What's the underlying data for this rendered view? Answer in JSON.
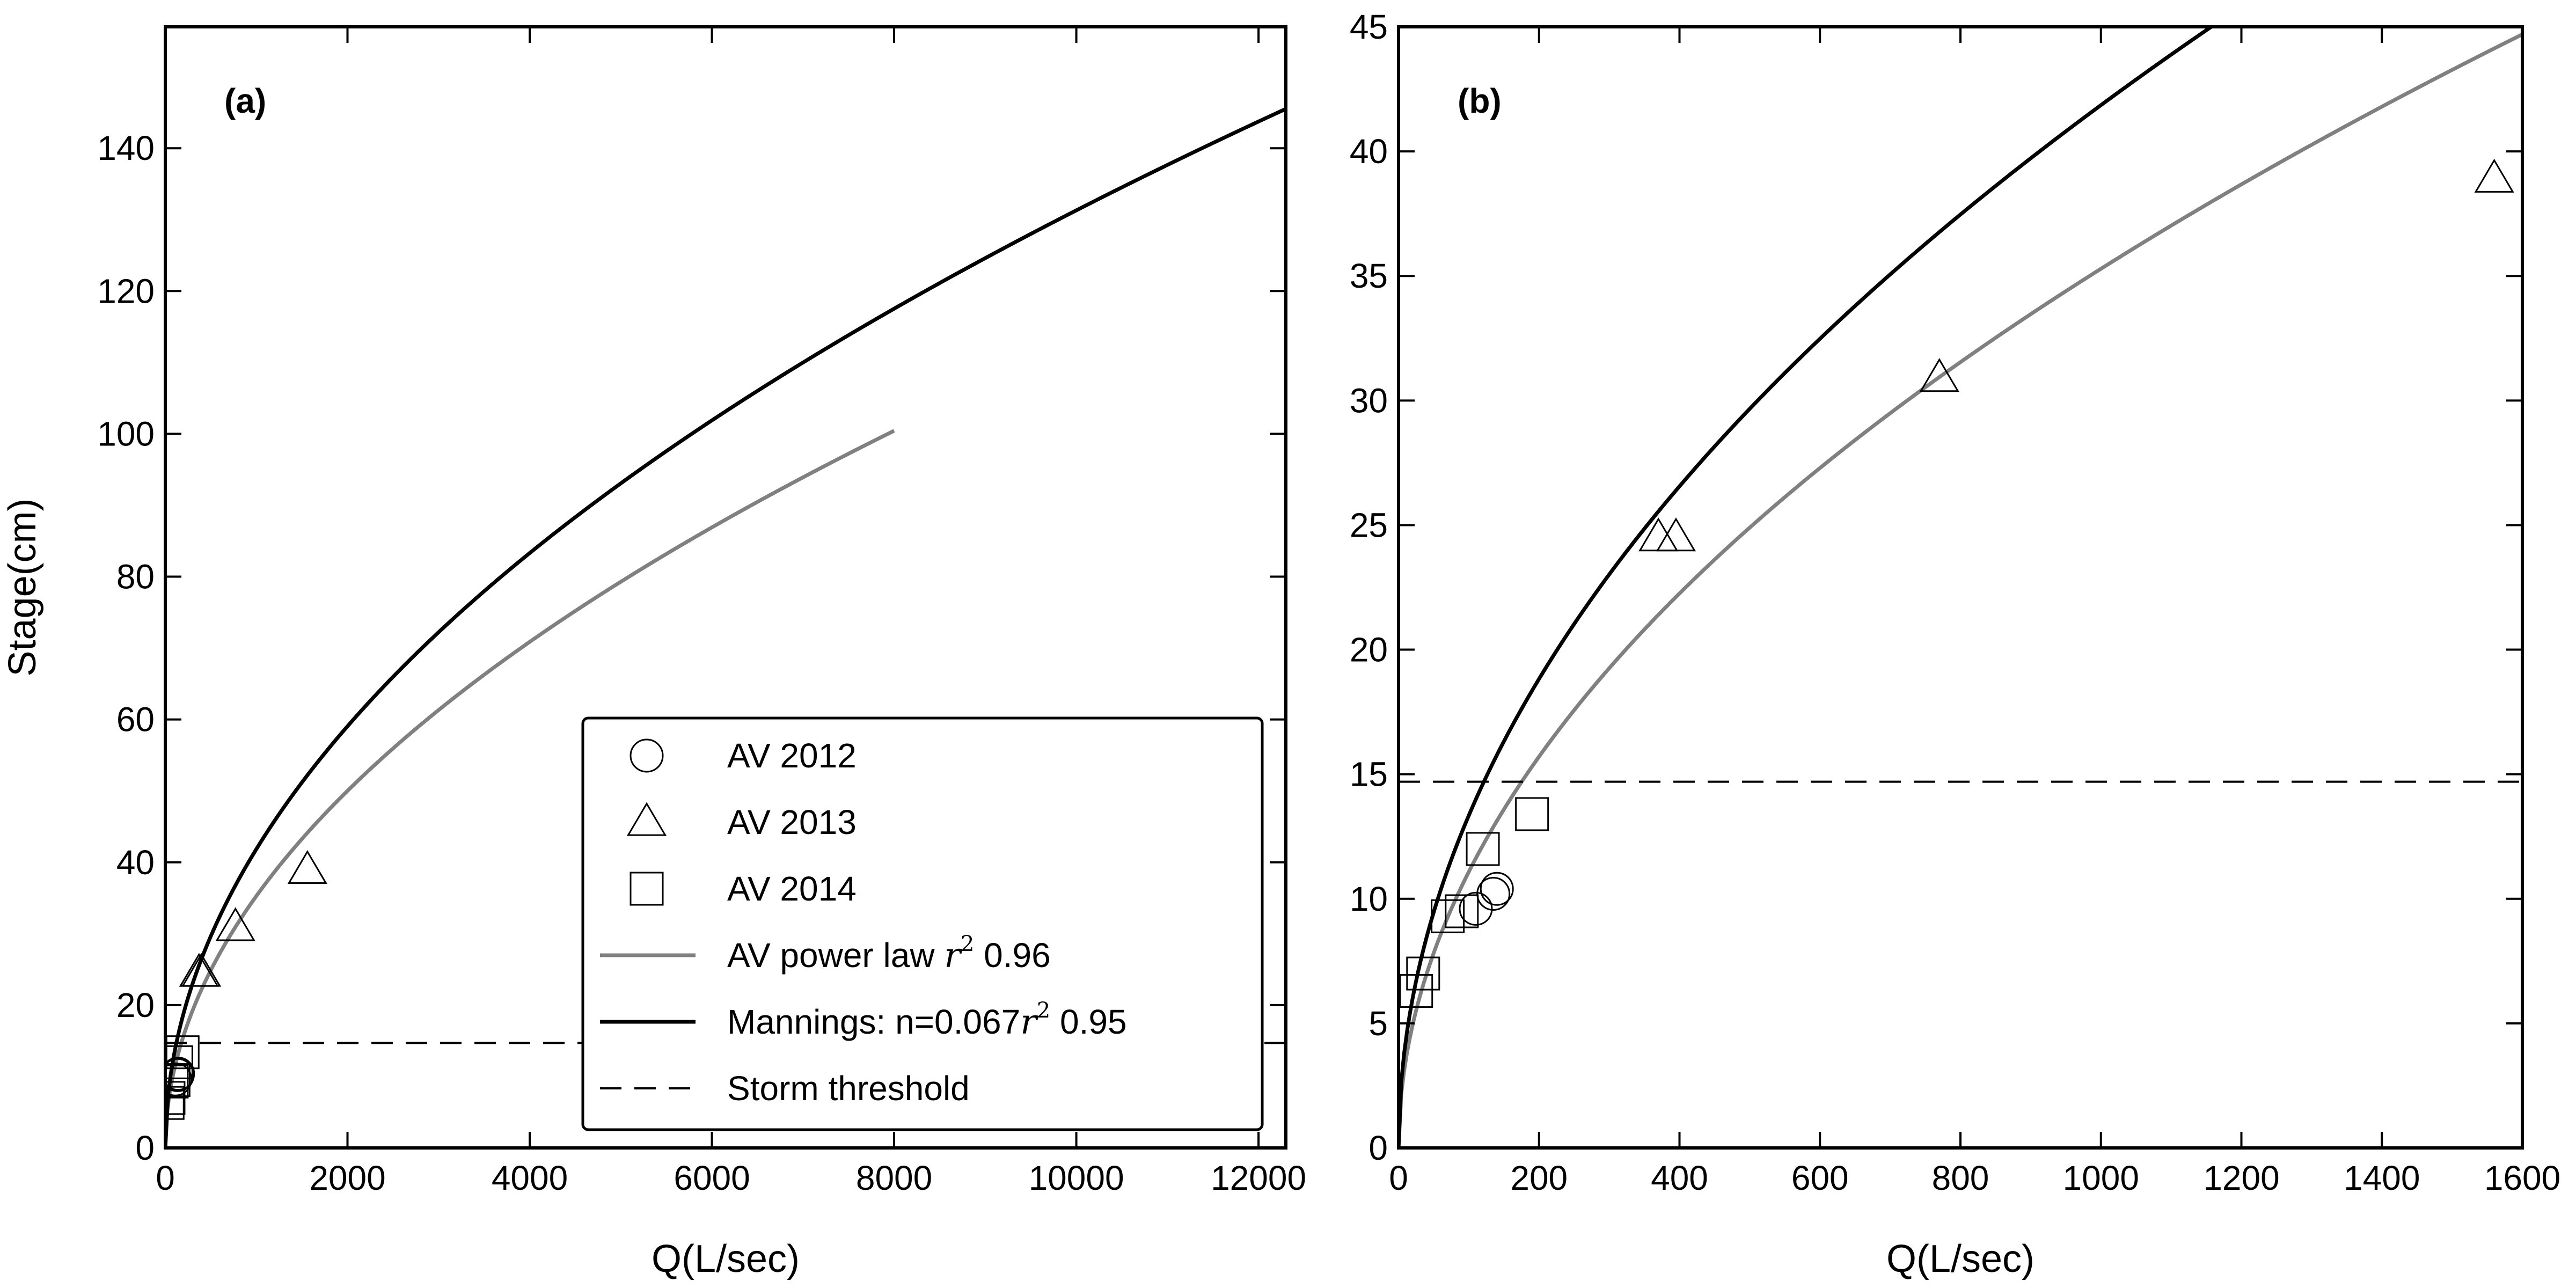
{
  "chart_data": [
    {
      "type": "scatter",
      "panel_label": "(a)",
      "xlabel": "Q(L/sec)",
      "ylabel": "Stage(cm)",
      "xlim": [
        0,
        12300
      ],
      "ylim": [
        0,
        157
      ],
      "xticks": [
        0,
        2000,
        4000,
        6000,
        8000,
        10000,
        12000
      ],
      "yticks": [
        0,
        20,
        40,
        60,
        80,
        100,
        120,
        140
      ],
      "grid": false,
      "legend_position": "lower-right",
      "series": [
        {
          "name": "AV 2012",
          "kind": "marker",
          "marker": "circle",
          "points": [
            [
              110,
              9.6
            ],
            [
              135,
              10.2
            ],
            [
              140,
              10.4
            ]
          ]
        },
        {
          "name": "AV 2013",
          "kind": "marker",
          "marker": "triangle",
          "points": [
            [
              370,
              24.5
            ],
            [
              395,
              24.5
            ],
            [
              770,
              30.9
            ],
            [
              1560,
              38.9
            ]
          ]
        },
        {
          "name": "AV 2014",
          "kind": "marker",
          "marker": "square",
          "points": [
            [
              25,
              6.3
            ],
            [
              35,
              7.0
            ],
            [
              70,
              9.3
            ],
            [
              90,
              9.5
            ],
            [
              120,
              12.0
            ],
            [
              190,
              13.4
            ]
          ]
        },
        {
          "name": "AV power law",
          "legend_suffix": "0.96",
          "kind": "curve",
          "color": "#808080",
          "function": "power",
          "a": 1.093,
          "b": 0.503,
          "x_range": [
            0,
            8000
          ]
        },
        {
          "name": "Mannings: n=0.067",
          "legend_suffix": "0.95",
          "kind": "curve",
          "color": "#000000",
          "function": "power",
          "a": 1.356,
          "b": 0.4965,
          "x_range": [
            0,
            12300
          ]
        },
        {
          "name": "Storm threshold",
          "kind": "hline",
          "color": "#000000",
          "dash": true,
          "y": 14.7
        }
      ]
    },
    {
      "type": "scatter",
      "panel_label": "(b)",
      "xlabel": "Q(L/sec)",
      "ylabel": "",
      "xlim": [
        0,
        1600
      ],
      "ylim": [
        0,
        45
      ],
      "xticks": [
        0,
        200,
        400,
        600,
        800,
        1000,
        1200,
        1400,
        1600
      ],
      "yticks": [
        0,
        5,
        10,
        15,
        20,
        25,
        30,
        35,
        40,
        45
      ],
      "grid": false,
      "series": [
        {
          "name": "AV 2012",
          "kind": "marker",
          "marker": "circle",
          "points": [
            [
              110,
              9.6
            ],
            [
              135,
              10.2
            ],
            [
              140,
              10.4
            ]
          ]
        },
        {
          "name": "AV 2013",
          "kind": "marker",
          "marker": "triangle",
          "points": [
            [
              370,
              24.5
            ],
            [
              395,
              24.5
            ],
            [
              770,
              30.9
            ],
            [
              1560,
              38.9
            ]
          ]
        },
        {
          "name": "AV 2014",
          "kind": "marker",
          "marker": "square",
          "points": [
            [
              25,
              6.3
            ],
            [
              35,
              7.0
            ],
            [
              70,
              9.3
            ],
            [
              90,
              9.5
            ],
            [
              120,
              12.0
            ],
            [
              190,
              13.4
            ]
          ]
        },
        {
          "name": "AV power law",
          "kind": "curve",
          "color": "#808080",
          "function": "power",
          "a": 1.093,
          "b": 0.503,
          "x_range": [
            0,
            1600
          ]
        },
        {
          "name": "Mannings: n=0.067",
          "kind": "curve",
          "color": "#000000",
          "function": "power",
          "a": 1.356,
          "b": 0.4965,
          "x_range": [
            0,
            1600
          ]
        },
        {
          "name": "Storm threshold",
          "kind": "hline",
          "color": "#000000",
          "dash": true,
          "y": 14.7
        }
      ]
    }
  ],
  "legend": {
    "items": [
      {
        "label": "AV 2012",
        "marker": "circle"
      },
      {
        "label": "AV 2013",
        "marker": "triangle"
      },
      {
        "label": "AV 2014",
        "marker": "square"
      },
      {
        "label": "AV power law ",
        "r2_symbol": "r",
        "r2_exp": "2",
        "suffix": " 0.96",
        "line": "solid",
        "color": "#808080"
      },
      {
        "label": "Mannings: n=0.067",
        "r2_symbol": "r",
        "r2_exp": "2",
        "suffix": " 0.95",
        "line": "solid",
        "color": "#000000"
      },
      {
        "label": "Storm threshold",
        "line": "dashed",
        "color": "#000000"
      }
    ]
  }
}
